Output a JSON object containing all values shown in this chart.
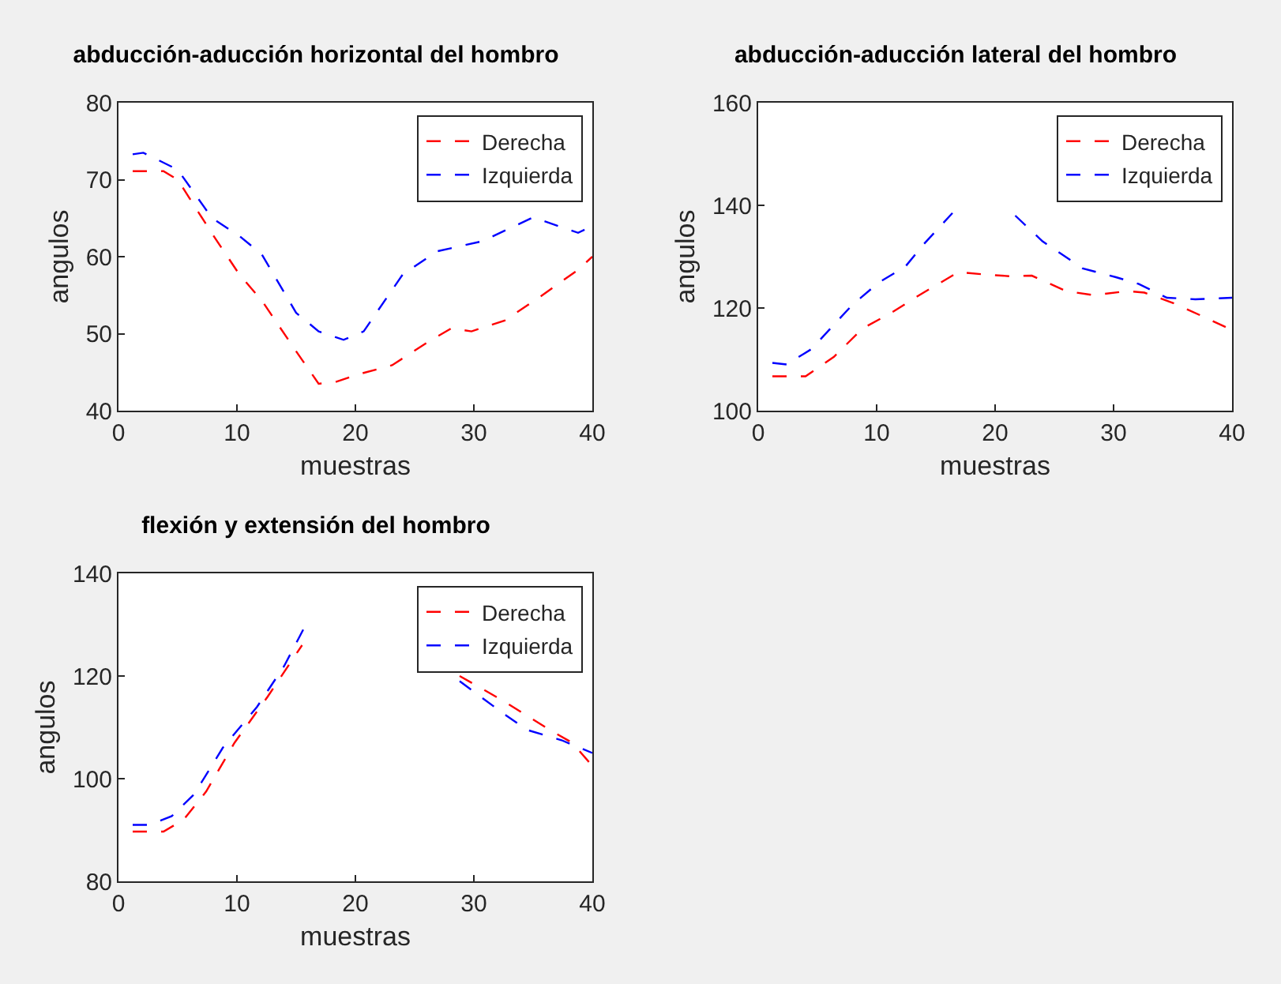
{
  "chart_data": [
    {
      "type": "line",
      "title": "abducción-aducción horizontal del hombro",
      "xlabel": "muestras",
      "ylabel": "angulos",
      "xlim": [
        0,
        40
      ],
      "xticks": [
        0,
        10,
        20,
        30,
        40
      ],
      "ylim": [
        40,
        80
      ],
      "yticks": [
        40,
        50,
        60,
        70,
        80
      ],
      "grid": false,
      "legend": "top right",
      "marker": "none",
      "line_style": "dashed",
      "series": [
        {
          "name": "Derecha",
          "color": "#ff0000",
          "x": [
            1.2,
            3.8,
            5,
            7.9,
            10.2,
            12.1,
            15,
            16.9,
            18.3,
            20.2,
            23.1,
            25.9,
            28.1,
            29.8,
            32.6,
            35.5,
            38.8,
            40
          ],
          "values": [
            71.1,
            71.1,
            70,
            63,
            57.7,
            54.3,
            47.7,
            43.5,
            43.7,
            44.7,
            45.9,
            48.7,
            50.7,
            50.3,
            51.7,
            54.7,
            58.3,
            60
          ]
        },
        {
          "name": "Izquierda",
          "color": "#0000ff",
          "x": [
            1.2,
            2.1,
            5,
            7.9,
            10.2,
            12.1,
            15,
            16.9,
            19,
            20.7,
            24,
            26.9,
            30.7,
            35,
            38.8,
            40
          ],
          "values": [
            73.3,
            73.5,
            71.3,
            65,
            62.7,
            60.3,
            52.7,
            50.3,
            49.2,
            50.3,
            57.7,
            60.7,
            62,
            65.1,
            63.1,
            64
          ]
        }
      ]
    },
    {
      "type": "line",
      "title": "abducción-aducción lateral del hombro",
      "xlabel": "muestras",
      "ylabel": "angulos",
      "xlim": [
        0,
        40
      ],
      "xticks": [
        0,
        10,
        20,
        30,
        40
      ],
      "ylim": [
        100,
        160
      ],
      "yticks": [
        100,
        120,
        140,
        160
      ],
      "grid": false,
      "legend": "top right",
      "marker": "none",
      "line_style": "dashed",
      "series": [
        {
          "name": "Derecha",
          "color": "#ff0000",
          "x": [
            1.2,
            4,
            6.4,
            8.8,
            11.2,
            13.6,
            16.9,
            19.3,
            21.2,
            23.1,
            26,
            28.3,
            31.2,
            32.6,
            35,
            37.4,
            40
          ],
          "values": [
            106.7,
            106.7,
            110.5,
            116,
            119,
            122.5,
            127,
            126.5,
            126.2,
            126.3,
            123.3,
            122.5,
            123.3,
            123,
            121,
            118.5,
            115.7
          ]
        },
        {
          "name": "Izquierda",
          "color": "#0000ff",
          "x": [
            1.2,
            2.4,
            4.5,
            7.9,
            10.2,
            12.4,
            14,
            16.4,
            19,
            21.7,
            24,
            27.4,
            30.2,
            32.1,
            34.5,
            36.9,
            40
          ],
          "values": [
            109.3,
            109,
            112,
            120.5,
            125,
            128,
            132.5,
            138.5,
            null,
            138,
            133,
            127.7,
            126,
            124.7,
            122,
            121.7,
            122
          ]
        }
      ]
    },
    {
      "type": "line",
      "title": "flexión y extensión del hombro",
      "xlabel": "muestras",
      "ylabel": "angulos",
      "xlim": [
        0,
        40
      ],
      "xticks": [
        0,
        10,
        20,
        30,
        40
      ],
      "ylim": [
        80,
        140
      ],
      "yticks": [
        80,
        100,
        120,
        140
      ],
      "grid": false,
      "legend": "top right",
      "marker": "none",
      "line_style": "dashed",
      "series": [
        {
          "name": "Derecha",
          "color": "#ff0000",
          "x": [
            1.2,
            3.8,
            5.5,
            7.4,
            9.8,
            12.6,
            15.5,
            22,
            28.8,
            32.6,
            36.4,
            38.3,
            40
          ],
          "values": [
            89.7,
            89.7,
            92,
            97.5,
            107,
            116,
            126,
            null,
            120,
            115,
            109.5,
            107,
            102.5
          ]
        },
        {
          "name": "Izquierda",
          "color": "#0000ff",
          "x": [
            1.2,
            2.6,
            4.5,
            6.4,
            8.8,
            11.7,
            14,
            15.7,
            22,
            28.8,
            32.6,
            34.5,
            37.4,
            40
          ],
          "values": [
            91,
            91,
            92.7,
            97,
            106,
            114,
            122,
            129.5,
            null,
            119,
            112.5,
            109.5,
            107.5,
            105
          ]
        }
      ]
    }
  ]
}
